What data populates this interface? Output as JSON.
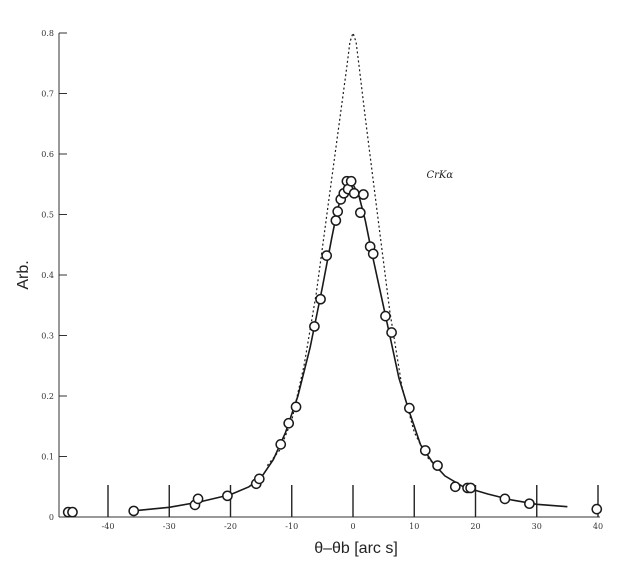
{
  "chart_data": {
    "type": "scatter",
    "title": "",
    "xlabel": "θ–θb [arc s]",
    "ylabel": "Arb.",
    "xlim": [
      -48,
      40
    ],
    "ylim": [
      0,
      0.8
    ],
    "x_ticks": [
      -40,
      -30,
      -20,
      -10,
      0,
      10,
      20,
      30,
      40
    ],
    "x_tick_labels": [
      "-40",
      "-30",
      "-20",
      "-10",
      "0",
      "10",
      "20",
      "30",
      "40"
    ],
    "y_ticks": [
      0,
      0.1,
      0.2,
      0.3,
      0.4,
      0.5,
      0.6,
      0.7,
      0.8
    ],
    "y_tick_labels": [
      "0",
      "0.1",
      "0.2",
      "0.3",
      "0.4",
      "0.5",
      "0.6",
      "0.7",
      "0.8"
    ],
    "grid": false,
    "annotations": [
      {
        "text": "CrKα",
        "x": 12,
        "y": 0.56
      }
    ],
    "series": [
      {
        "style": "markers",
        "points": [
          [
            -46.5,
            0.008
          ],
          [
            -45.8,
            0.008
          ],
          [
            -35.8,
            0.01
          ],
          [
            -25.8,
            0.02
          ],
          [
            -25.3,
            0.03
          ],
          [
            -20.5,
            0.035
          ],
          [
            -15.8,
            0.055
          ],
          [
            -15.3,
            0.063
          ],
          [
            -11.8,
            0.12
          ],
          [
            -10.5,
            0.155
          ],
          [
            -9.3,
            0.182
          ],
          [
            -6.3,
            0.315
          ],
          [
            -5.3,
            0.36
          ],
          [
            -4.3,
            0.432
          ],
          [
            -2.8,
            0.49
          ],
          [
            -2.5,
            0.505
          ],
          [
            -2.0,
            0.525
          ],
          [
            -1.5,
            0.535
          ],
          [
            -1.0,
            0.555
          ],
          [
            -0.8,
            0.542
          ],
          [
            -0.3,
            0.555
          ],
          [
            0.2,
            0.535
          ],
          [
            1.2,
            0.503
          ],
          [
            1.7,
            0.533
          ],
          [
            2.8,
            0.447
          ],
          [
            3.3,
            0.435
          ],
          [
            5.3,
            0.332
          ],
          [
            6.3,
            0.305
          ],
          [
            9.2,
            0.18
          ],
          [
            11.8,
            0.11
          ],
          [
            13.8,
            0.085
          ],
          [
            16.7,
            0.05
          ],
          [
            18.7,
            0.048
          ],
          [
            19.2,
            0.048
          ],
          [
            24.8,
            0.03
          ],
          [
            28.8,
            0.022
          ],
          [
            39.8,
            0.013
          ]
        ]
      },
      {
        "style": "solid",
        "points": [
          [
            -36,
            0.01
          ],
          [
            -30,
            0.016
          ],
          [
            -25,
            0.025
          ],
          [
            -20,
            0.037
          ],
          [
            -17,
            0.05
          ],
          [
            -15,
            0.065
          ],
          [
            -13,
            0.095
          ],
          [
            -11,
            0.14
          ],
          [
            -9,
            0.2
          ],
          [
            -7,
            0.28
          ],
          [
            -5,
            0.38
          ],
          [
            -3.5,
            0.46
          ],
          [
            -2.5,
            0.51
          ],
          [
            -1.5,
            0.54
          ],
          [
            -0.7,
            0.555
          ],
          [
            -0.3,
            0.556
          ],
          [
            0,
            0.55
          ],
          [
            1,
            0.53
          ],
          [
            2,
            0.49
          ],
          [
            3,
            0.44
          ],
          [
            4.5,
            0.37
          ],
          [
            6,
            0.3
          ],
          [
            7.5,
            0.23
          ],
          [
            9,
            0.18
          ],
          [
            11,
            0.12
          ],
          [
            13,
            0.09
          ],
          [
            15,
            0.068
          ],
          [
            18,
            0.05
          ],
          [
            22,
            0.038
          ],
          [
            26,
            0.028
          ],
          [
            30,
            0.021
          ],
          [
            35,
            0.017
          ]
        ]
      },
      {
        "style": "dotted",
        "points": [
          [
            -14,
            0.085
          ],
          [
            -12,
            0.11
          ],
          [
            -10,
            0.16
          ],
          [
            -8,
            0.25
          ],
          [
            -6,
            0.37
          ],
          [
            -4,
            0.52
          ],
          [
            -2,
            0.67
          ],
          [
            -1,
            0.745
          ],
          [
            -0.5,
            0.785
          ],
          [
            0,
            0.8
          ],
          [
            0.5,
            0.785
          ],
          [
            1,
            0.745
          ],
          [
            2,
            0.66
          ],
          [
            4,
            0.5
          ],
          [
            6,
            0.34
          ],
          [
            8,
            0.215
          ],
          [
            10,
            0.14
          ],
          [
            12,
            0.1
          ],
          [
            14,
            0.08
          ]
        ]
      }
    ]
  }
}
